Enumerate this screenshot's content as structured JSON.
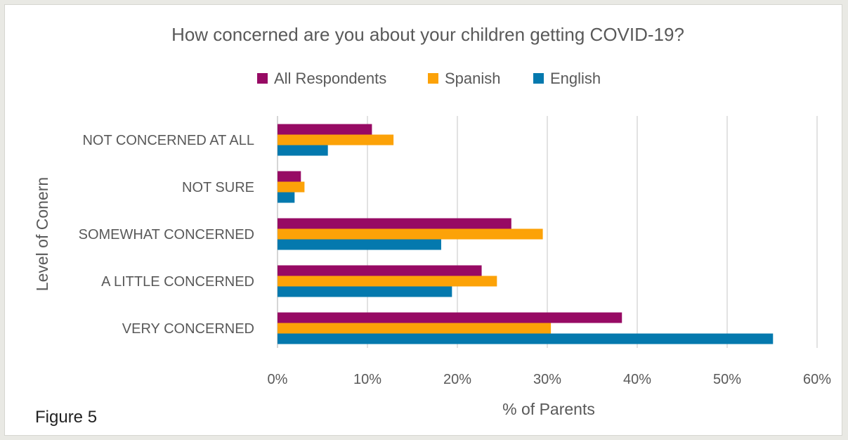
{
  "figure_label": "Figure 5",
  "chart_data": {
    "type": "bar",
    "orientation": "horizontal",
    "title": "How concerned are you about your children getting COVID-19?",
    "xlabel": "% of Parents",
    "ylabel": "Level of Conern",
    "categories": [
      "NOT CONCERNED AT ALL",
      "NOT SURE",
      "SOMEWHAT CONCERNED",
      "A LITTLE CONCERNED",
      "VERY CONCERNED"
    ],
    "series": [
      {
        "name": "All Respondents",
        "color": "#970a64",
        "values": [
          10.5,
          2.6,
          26.0,
          22.7,
          38.3
        ]
      },
      {
        "name": "Spanish",
        "color": "#fca208",
        "values": [
          12.9,
          3.0,
          29.5,
          24.4,
          30.4
        ]
      },
      {
        "name": "English",
        "color": "#0479ae",
        "values": [
          5.6,
          1.9,
          18.2,
          19.4,
          55.1
        ]
      }
    ],
    "xlim": [
      0,
      60
    ],
    "xticks": [
      "0%",
      "10%",
      "20%",
      "30%",
      "40%",
      "50%",
      "60%"
    ],
    "grid": "vertical",
    "legend_position": "top"
  }
}
